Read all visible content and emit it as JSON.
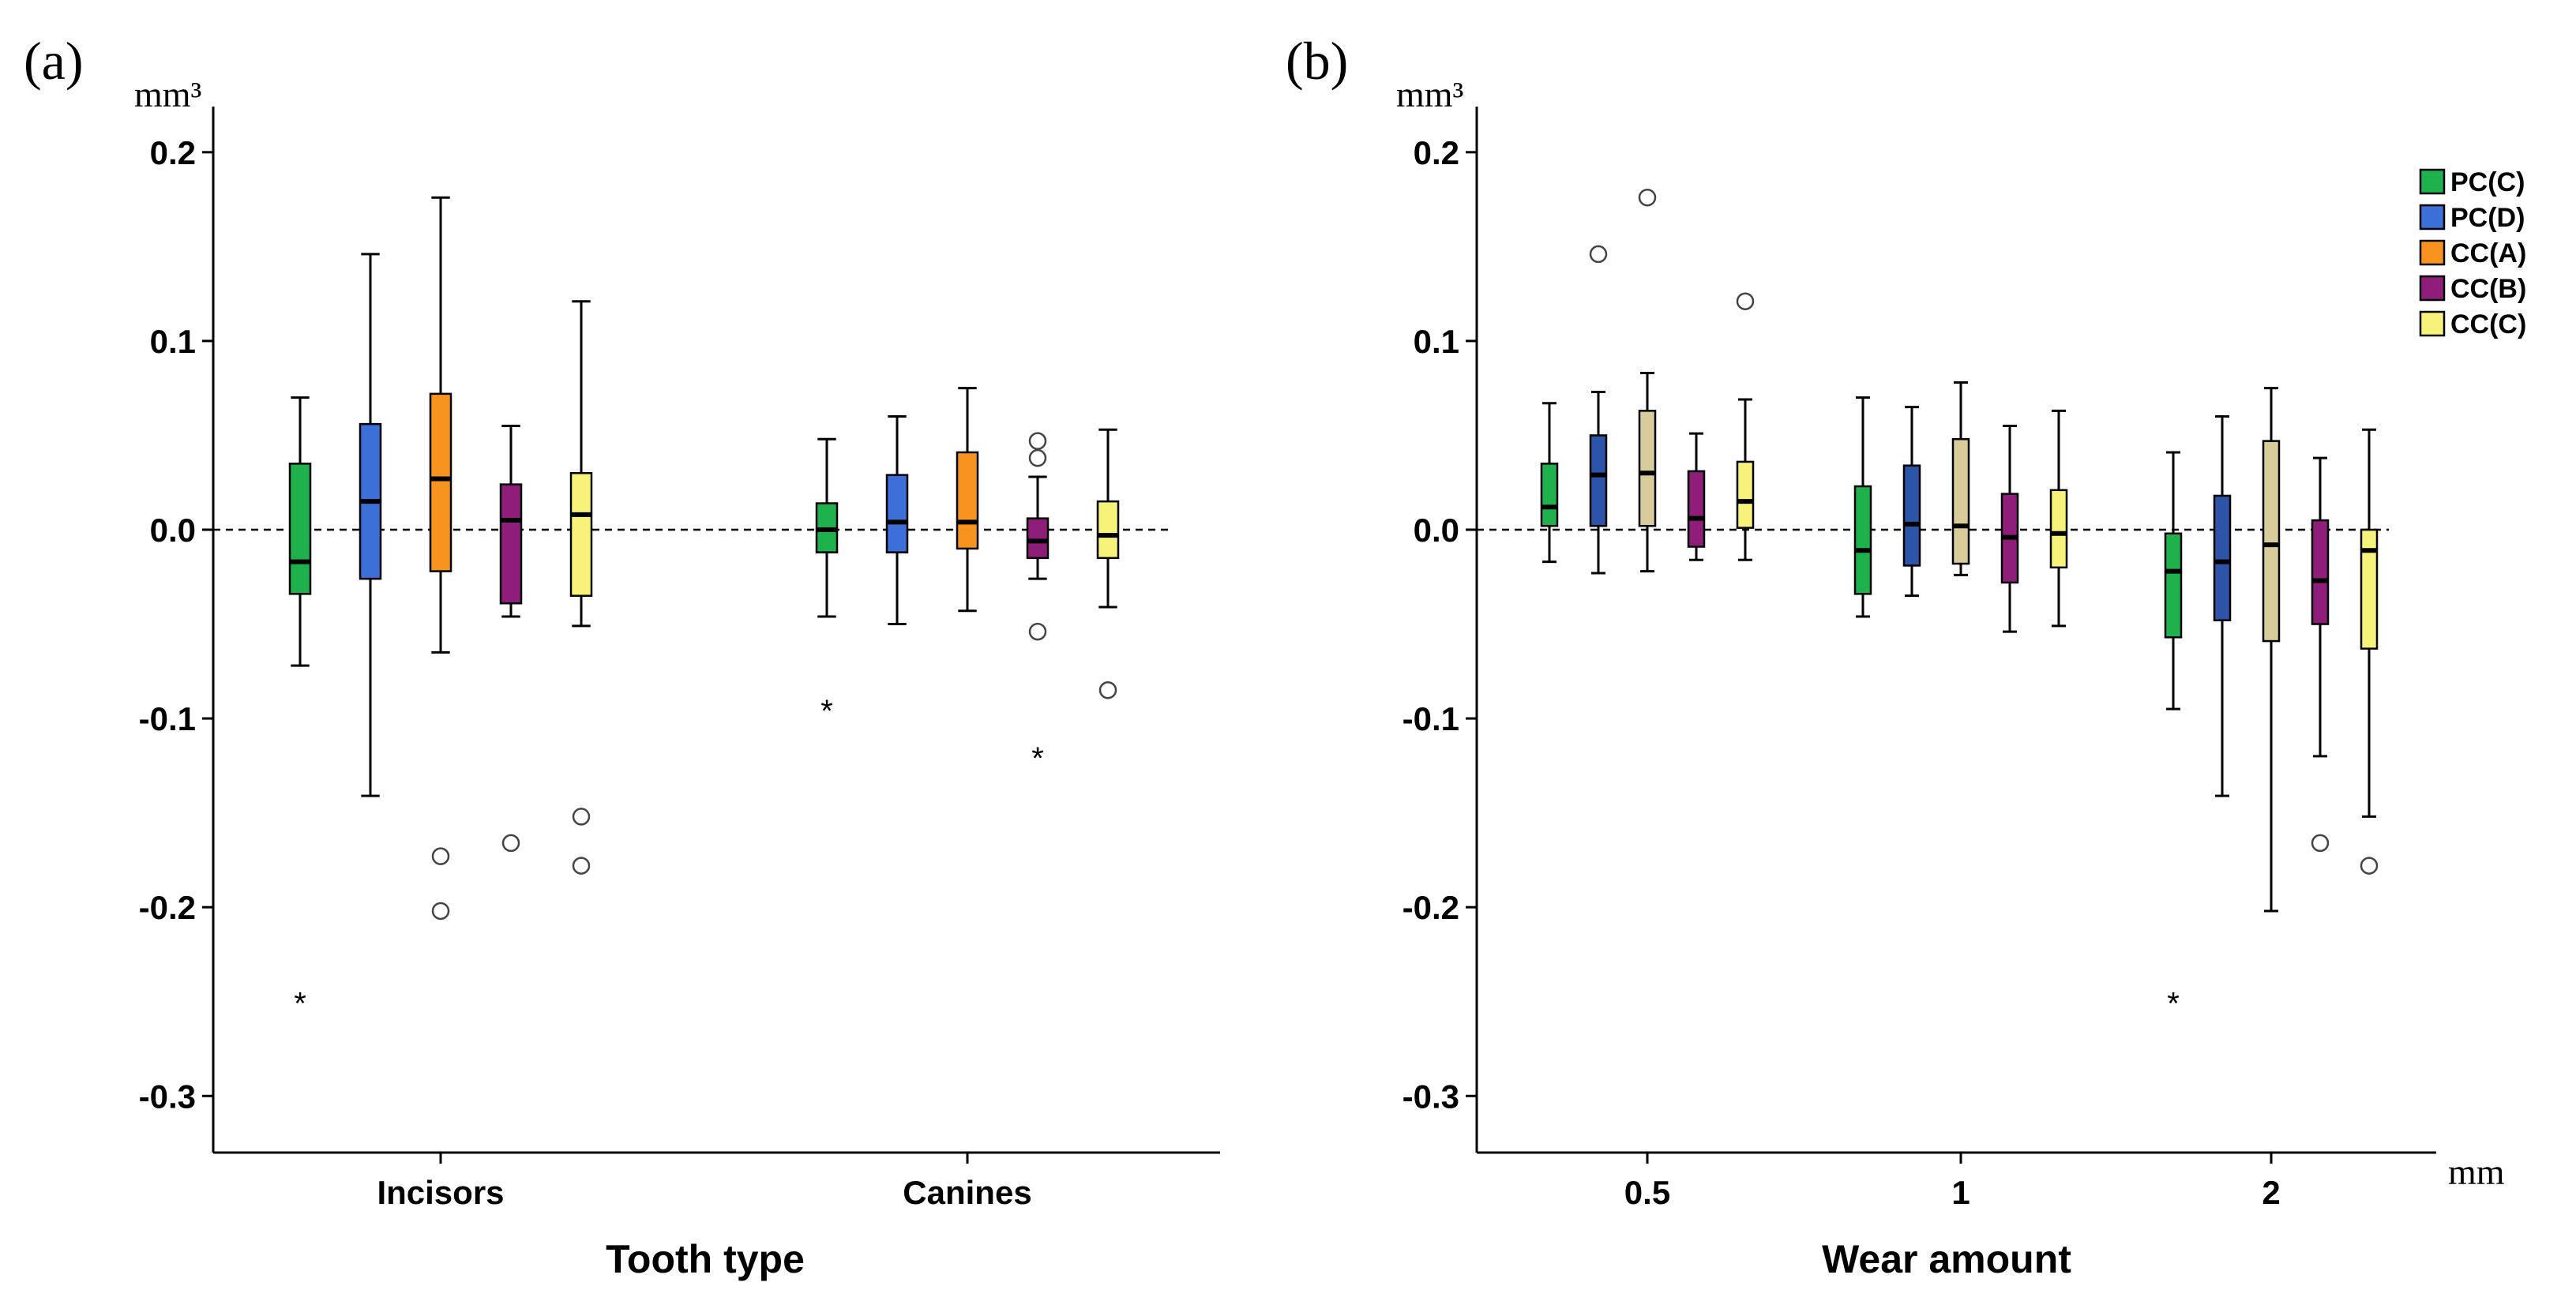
{
  "colors": {
    "PC(C)": "#1FB14B",
    "PC(D)": "#3D6FD8",
    "CC(A)": "#F7931E",
    "CC(B)": "#8E1E7A",
    "CC(C)": "#F7F27A",
    "PC(D)_b": "#2C54A8",
    "CC(A)_b": "#D8CC9A"
  },
  "chart_data": [
    {
      "type": "boxplot",
      "panel_label": "(a)",
      "ylabel_unit": "mm³",
      "xlabel": "Tooth type",
      "ylim": [
        -0.33,
        0.22
      ],
      "yticks": [
        0.2,
        0.1,
        0.0,
        -0.1,
        -0.2,
        -0.3
      ],
      "ytick_labels": [
        "0.2",
        "0.1",
        "0.0",
        "-0.1",
        "-0.2",
        "-0.3"
      ],
      "categories": [
        "Incisors",
        "Canines"
      ],
      "reference_line": 0.0,
      "groups": [
        {
          "category": "Incisors",
          "boxes": [
            {
              "series": "PC(C)",
              "color": "#1FB14B",
              "whisker_low": -0.072,
              "q1": -0.034,
              "median": -0.017,
              "q3": 0.035,
              "whisker_high": 0.07,
              "outliers": [],
              "extremes": [
                -0.25
              ]
            },
            {
              "series": "PC(D)",
              "color": "#3D6FD8",
              "whisker_low": -0.141,
              "q1": -0.026,
              "median": 0.015,
              "q3": 0.056,
              "whisker_high": 0.146,
              "outliers": [],
              "extremes": []
            },
            {
              "series": "CC(A)",
              "color": "#F7931E",
              "whisker_low": -0.065,
              "q1": -0.022,
              "median": 0.027,
              "q3": 0.072,
              "whisker_high": 0.176,
              "outliers": [
                -0.173,
                -0.202
              ],
              "extremes": []
            },
            {
              "series": "CC(B)",
              "color": "#8E1E7A",
              "whisker_low": -0.046,
              "q1": -0.039,
              "median": 0.005,
              "q3": 0.024,
              "whisker_high": 0.055,
              "outliers": [
                -0.166
              ],
              "extremes": []
            },
            {
              "series": "CC(C)",
              "color": "#F7F27A",
              "whisker_low": -0.051,
              "q1": -0.035,
              "median": 0.008,
              "q3": 0.03,
              "whisker_high": 0.121,
              "outliers": [
                -0.152,
                -0.178
              ],
              "extremes": []
            }
          ]
        },
        {
          "category": "Canines",
          "boxes": [
            {
              "series": "PC(C)",
              "color": "#1FB14B",
              "whisker_low": -0.046,
              "q1": -0.012,
              "median": 0.0,
              "q3": 0.014,
              "whisker_high": 0.048,
              "outliers": [],
              "extremes": [
                -0.095
              ]
            },
            {
              "series": "PC(D)",
              "color": "#3D6FD8",
              "whisker_low": -0.05,
              "q1": -0.012,
              "median": 0.004,
              "q3": 0.029,
              "whisker_high": 0.06,
              "outliers": [],
              "extremes": []
            },
            {
              "series": "CC(A)",
              "color": "#F7931E",
              "whisker_low": -0.043,
              "q1": -0.01,
              "median": 0.004,
              "q3": 0.041,
              "whisker_high": 0.075,
              "outliers": [],
              "extremes": []
            },
            {
              "series": "CC(B)",
              "color": "#8E1E7A",
              "whisker_low": -0.026,
              "q1": -0.015,
              "median": -0.006,
              "q3": 0.006,
              "whisker_high": 0.028,
              "outliers": [
                0.047,
                0.038,
                -0.054
              ],
              "extremes": [
                -0.12
              ]
            },
            {
              "series": "CC(C)",
              "color": "#F7F27A",
              "whisker_low": -0.041,
              "q1": -0.015,
              "median": -0.003,
              "q3": 0.015,
              "whisker_high": 0.053,
              "outliers": [
                -0.085
              ],
              "extremes": []
            }
          ]
        }
      ]
    },
    {
      "type": "boxplot",
      "panel_label": "(b)",
      "ylabel_unit": "mm³",
      "xlabel": "Wear amount",
      "xunit": "mm",
      "ylim": [
        -0.33,
        0.22
      ],
      "yticks": [
        0.2,
        0.1,
        0.0,
        -0.1,
        -0.2,
        -0.3
      ],
      "ytick_labels": [
        "0.2",
        "0.1",
        "0.0",
        "-0.1",
        "-0.2",
        "-0.3"
      ],
      "categories": [
        "0.5",
        "1",
        "2"
      ],
      "reference_line": 0.0,
      "legend": {
        "position": "top-right",
        "entries": [
          {
            "label": "PC(C)",
            "color": "#1FB14B"
          },
          {
            "label": "PC(D)",
            "color": "#3D6FD8"
          },
          {
            "label": "CC(A)",
            "color": "#F7931E"
          },
          {
            "label": "CC(B)",
            "color": "#8E1E7A"
          },
          {
            "label": "CC(C)",
            "color": "#F7F27A"
          }
        ]
      },
      "groups": [
        {
          "category": "0.5",
          "boxes": [
            {
              "series": "PC(C)",
              "color": "#1FB14B",
              "whisker_low": -0.017,
              "q1": 0.002,
              "median": 0.012,
              "q3": 0.035,
              "whisker_high": 0.067,
              "outliers": [],
              "extremes": []
            },
            {
              "series": "PC(D)",
              "color": "#2C54A8",
              "whisker_low": -0.023,
              "q1": 0.002,
              "median": 0.029,
              "q3": 0.05,
              "whisker_high": 0.073,
              "outliers": [
                0.146
              ],
              "extremes": []
            },
            {
              "series": "CC(A)",
              "color": "#D8CC9A",
              "whisker_low": -0.022,
              "q1": 0.002,
              "median": 0.03,
              "q3": 0.063,
              "whisker_high": 0.083,
              "outliers": [
                0.176
              ],
              "extremes": []
            },
            {
              "series": "CC(B)",
              "color": "#8E1E7A",
              "whisker_low": -0.016,
              "q1": -0.009,
              "median": 0.006,
              "q3": 0.031,
              "whisker_high": 0.051,
              "outliers": [],
              "extremes": []
            },
            {
              "series": "CC(C)",
              "color": "#F7F27A",
              "whisker_low": -0.016,
              "q1": 0.001,
              "median": 0.015,
              "q3": 0.036,
              "whisker_high": 0.069,
              "outliers": [
                0.121
              ],
              "extremes": []
            }
          ]
        },
        {
          "category": "1",
          "boxes": [
            {
              "series": "PC(C)",
              "color": "#1FB14B",
              "whisker_low": -0.046,
              "q1": -0.034,
              "median": -0.011,
              "q3": 0.023,
              "whisker_high": 0.07,
              "outliers": [],
              "extremes": []
            },
            {
              "series": "PC(D)",
              "color": "#2C54A8",
              "whisker_low": -0.035,
              "q1": -0.019,
              "median": 0.003,
              "q3": 0.034,
              "whisker_high": 0.065,
              "outliers": [],
              "extremes": []
            },
            {
              "series": "CC(A)",
              "color": "#D8CC9A",
              "whisker_low": -0.024,
              "q1": -0.018,
              "median": 0.002,
              "q3": 0.048,
              "whisker_high": 0.078,
              "outliers": [],
              "extremes": []
            },
            {
              "series": "CC(B)",
              "color": "#8E1E7A",
              "whisker_low": -0.054,
              "q1": -0.028,
              "median": -0.004,
              "q3": 0.019,
              "whisker_high": 0.055,
              "outliers": [],
              "extremes": []
            },
            {
              "series": "CC(C)",
              "color": "#F7F27A",
              "whisker_low": -0.051,
              "q1": -0.02,
              "median": -0.002,
              "q3": 0.021,
              "whisker_high": 0.063,
              "outliers": [],
              "extremes": []
            }
          ]
        },
        {
          "category": "2",
          "boxes": [
            {
              "series": "PC(C)",
              "color": "#1FB14B",
              "whisker_low": -0.095,
              "q1": -0.057,
              "median": -0.022,
              "q3": -0.002,
              "whisker_high": 0.041,
              "outliers": [],
              "extremes": [
                -0.25
              ]
            },
            {
              "series": "PC(D)",
              "color": "#2C54A8",
              "whisker_low": -0.141,
              "q1": -0.048,
              "median": -0.017,
              "q3": 0.018,
              "whisker_high": 0.06,
              "outliers": [],
              "extremes": []
            },
            {
              "series": "CC(A)",
              "color": "#D8CC9A",
              "whisker_low": -0.202,
              "q1": -0.059,
              "median": -0.008,
              "q3": 0.047,
              "whisker_high": 0.075,
              "outliers": [],
              "extremes": []
            },
            {
              "series": "CC(B)",
              "color": "#8E1E7A",
              "whisker_low": -0.12,
              "q1": -0.05,
              "median": -0.027,
              "q3": 0.005,
              "whisker_high": 0.038,
              "outliers": [
                -0.166
              ],
              "extremes": []
            },
            {
              "series": "CC(C)",
              "color": "#F7F27A",
              "whisker_low": -0.152,
              "q1": -0.063,
              "median": -0.011,
              "q3": 0.0,
              "whisker_high": 0.053,
              "outliers": [
                -0.178
              ],
              "extremes": []
            }
          ]
        }
      ]
    }
  ]
}
